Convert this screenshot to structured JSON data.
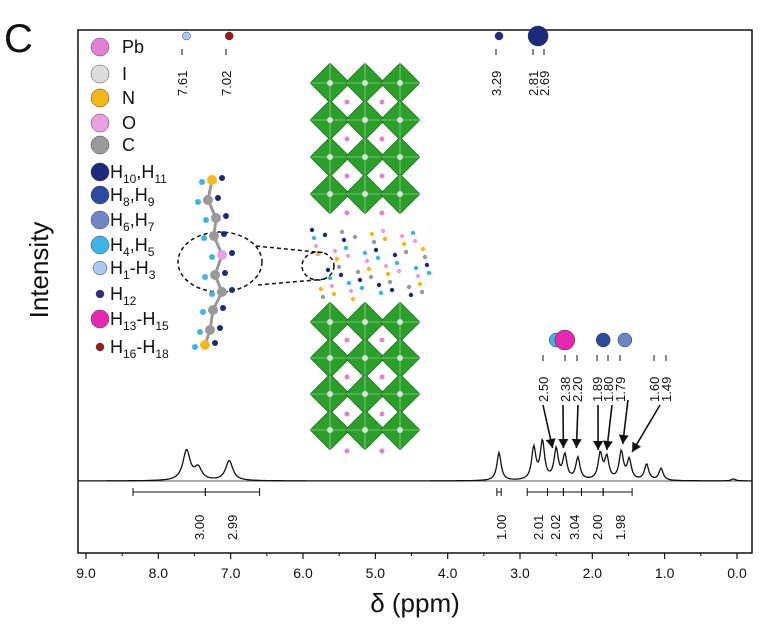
{
  "chart_data": {
    "type": "line",
    "panel_label": "C",
    "xlabel": "δ (ppm)",
    "ylabel": "Intensity",
    "x_reversed": true,
    "xlim": [
      9.0,
      -0.1
    ],
    "xticks": [
      "9.0",
      "8.0",
      "7.0",
      "6.0",
      "5.0",
      "4.0",
      "3.0",
      "2.0",
      "1.0",
      "0.0"
    ],
    "tick_values": [
      9.0,
      8.0,
      7.0,
      6.0,
      5.0,
      4.0,
      3.0,
      2.0,
      1.0,
      0.0
    ],
    "peak_labels": [
      {
        "value": 7.61,
        "text": "7.61"
      },
      {
        "value": 7.02,
        "text": "7.02"
      },
      {
        "value": 3.29,
        "text": "3.29"
      },
      {
        "value": 2.81,
        "text": "2.81"
      },
      {
        "value": 2.69,
        "text": "2.69"
      },
      {
        "value": 2.5,
        "text": "2.50"
      },
      {
        "value": 2.38,
        "text": "2.38"
      },
      {
        "value": 2.2,
        "text": "2.20"
      },
      {
        "value": 1.89,
        "text": "1.89"
      },
      {
        "value": 1.8,
        "text": "1.80"
      },
      {
        "value": 1.79,
        "text": "1.79"
      },
      {
        "value": 1.6,
        "text": "1.60"
      },
      {
        "value": 1.49,
        "text": "1.49"
      }
    ],
    "integrals": [
      {
        "center": 7.61,
        "range": [
          8.35,
          7.35
        ],
        "text": "3.00"
      },
      {
        "center": 7.02,
        "range": [
          7.35,
          6.6
        ],
        "text": "2.99"
      },
      {
        "center": 3.29,
        "range": [
          3.32,
          3.26
        ],
        "text": "1.00"
      },
      {
        "center": 2.81,
        "range": [
          2.9,
          2.62
        ],
        "text": "2.01"
      },
      {
        "center": 2.6,
        "range": [
          2.62,
          2.4
        ],
        "text": "2.02"
      },
      {
        "center": 2.37,
        "range": [
          2.4,
          2.15
        ],
        "text": "3.04"
      },
      {
        "center": 2.0,
        "range": [
          2.15,
          1.85
        ],
        "text": "2.00"
      },
      {
        "center": 1.72,
        "range": [
          1.85,
          1.45
        ],
        "text": "1.98"
      }
    ],
    "spectrum_peaks": [
      {
        "ppm": 7.61,
        "height": 30
      },
      {
        "ppm": 7.45,
        "height": 12
      },
      {
        "ppm": 7.02,
        "height": 20
      },
      {
        "ppm": 3.29,
        "height": 28
      },
      {
        "ppm": 2.81,
        "height": 32
      },
      {
        "ppm": 2.69,
        "height": 38
      },
      {
        "ppm": 2.5,
        "height": 30
      },
      {
        "ppm": 2.38,
        "height": 24
      },
      {
        "ppm": 2.2,
        "height": 22
      },
      {
        "ppm": 1.89,
        "height": 26
      },
      {
        "ppm": 1.8,
        "height": 22
      },
      {
        "ppm": 1.6,
        "height": 28
      },
      {
        "ppm": 1.49,
        "height": 20
      },
      {
        "ppm": 1.25,
        "height": 16
      },
      {
        "ppm": 1.05,
        "height": 12
      },
      {
        "ppm": 0.05,
        "height": 2
      }
    ],
    "legend": [
      {
        "label": "Pb",
        "color": "#e27fd6",
        "size": "large"
      },
      {
        "label": "I",
        "color": "#dcdcdc",
        "size": "large"
      },
      {
        "label": "N",
        "color": "#f5b819",
        "size": "large"
      },
      {
        "label": "O",
        "color": "#e99fe0",
        "size": "large"
      },
      {
        "label": "C",
        "color": "#9a9a9a",
        "size": "large"
      },
      {
        "label": "H",
        "sub": "10",
        "mid": ",H",
        "sub2": "11",
        "color": "#1b2a7a",
        "size": "large"
      },
      {
        "label": "H",
        "sub": "8",
        "mid": ",H",
        "sub2": "9",
        "color": "#2d4aa3",
        "size": "large"
      },
      {
        "label": "H",
        "sub": "6",
        "mid": ",H",
        "sub2": "7",
        "color": "#6f86c6",
        "size": "large"
      },
      {
        "label": "H",
        "sub": "4",
        "mid": ",H",
        "sub2": "5",
        "color": "#3db4e8",
        "size": "large"
      },
      {
        "label": "H",
        "sub": "1",
        "mid": "-H",
        "sub2": "3",
        "color": "#a9c9ef",
        "size": "medium"
      },
      {
        "label": "H",
        "sub": "12",
        "mid": "",
        "sub2": "",
        "color": "#2e2a8c",
        "size": "small"
      },
      {
        "label": "H",
        "sub": "13",
        "mid": "-H",
        "sub2": "15",
        "color": "#e52ab0",
        "size": "large"
      },
      {
        "label": "H",
        "sub": "16",
        "mid": "-H",
        "sub2": "18",
        "color": "#9b1c1c",
        "size": "small"
      }
    ],
    "marker_balls": [
      {
        "value": 7.61,
        "color": "#a9c9ef",
        "size": "small"
      },
      {
        "value": 7.02,
        "color": "#9b1c1c",
        "size": "small"
      },
      {
        "value": 3.29,
        "color": "#2e2a8c",
        "size": "small"
      },
      {
        "value": 2.75,
        "color": "#1b2a7a",
        "size": "large"
      },
      {
        "value": 2.5,
        "color": "#3db4e8",
        "size": "medium"
      },
      {
        "value": 2.38,
        "color": "#e52ab0",
        "size": "large"
      },
      {
        "value": 1.85,
        "color": "#2d4aa3",
        "size": "medium"
      },
      {
        "value": 1.55,
        "color": "#6f86c6",
        "size": "medium"
      }
    ]
  }
}
